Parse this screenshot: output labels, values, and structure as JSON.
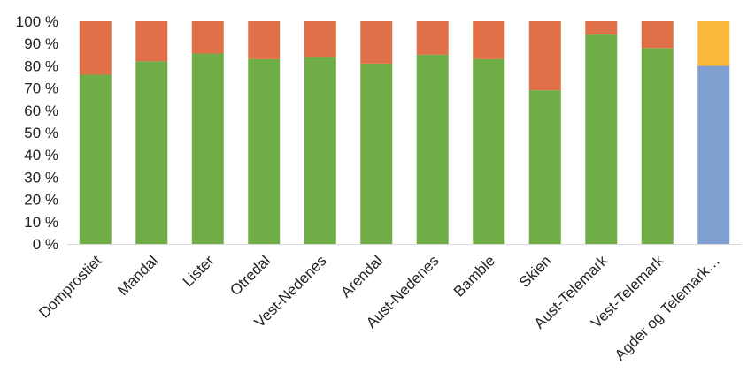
{
  "chart_data": {
    "type": "bar",
    "stacked": true,
    "percent_scale": true,
    "title": "",
    "xlabel": "",
    "ylabel": "",
    "ylim": [
      0,
      100
    ],
    "y_ticks": [
      "0 %",
      "10 %",
      "20 %",
      "30 %",
      "40 %",
      "50 %",
      "60 %",
      "70 %",
      "80 %",
      "90 %",
      "100 %"
    ],
    "grid": false,
    "legend": "none",
    "categories": [
      "Domprostiet",
      "Mandal",
      "Lister",
      "Otredal",
      "Vest-Nedenes",
      "Arendal",
      "Aust-Nedenes",
      "Bamble",
      "Skien",
      "Aust-Telemark",
      "Vest-Telemark",
      "Agder og Telemark…"
    ],
    "segments": [
      {
        "values": [
          76,
          82,
          85.5,
          83,
          84,
          81,
          85,
          83,
          69,
          94,
          88,
          80
        ],
        "colors": [
          "#70ad47",
          "#70ad47",
          "#70ad47",
          "#70ad47",
          "#70ad47",
          "#70ad47",
          "#70ad47",
          "#70ad47",
          "#70ad47",
          "#70ad47",
          "#70ad47",
          "#7f9fd1"
        ]
      },
      {
        "values": [
          24,
          18,
          14.5,
          17,
          16,
          19,
          15,
          17,
          31,
          6,
          12,
          20
        ],
        "colors": [
          "#e07048",
          "#e07048",
          "#e07048",
          "#e07048",
          "#e07048",
          "#e07048",
          "#e07048",
          "#e07048",
          "#e07048",
          "#e07048",
          "#e07048",
          "#f8b93c"
        ]
      }
    ]
  }
}
